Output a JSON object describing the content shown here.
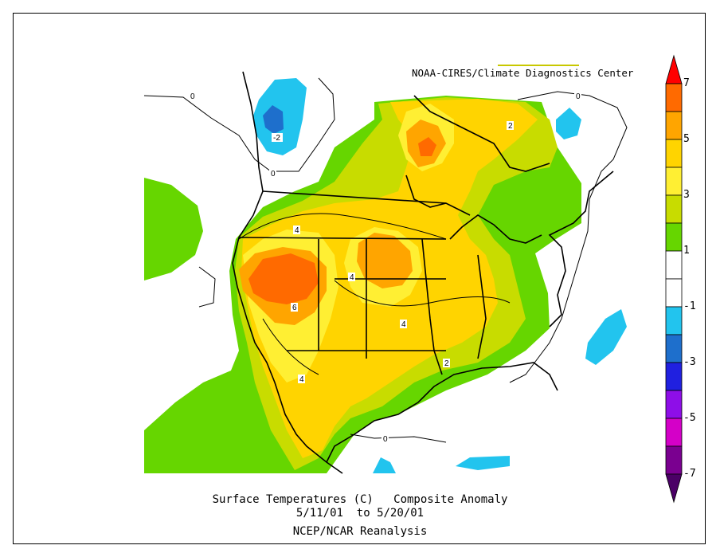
{
  "map": {
    "credit": "NOAA-CIRES/Climate Diagnostics Center",
    "title": "Surface Temperatures (C)   Composite Anomaly",
    "dates": "5/11/01  to 5/20/01",
    "source": "NCEP/NCAR Reanalysis",
    "contour_labels": [
      "-2",
      "0",
      "0",
      "0",
      "0",
      "2",
      "2",
      "4",
      "4",
      "4",
      "4",
      "6"
    ]
  },
  "colorbar": {
    "labels": [
      "7",
      "5",
      "3",
      "1",
      "-1",
      "-3",
      "-5",
      "-7"
    ],
    "colors": [
      "#ff0000",
      "#ff6a00",
      "#ffa500",
      "#ffd400",
      "#ffef33",
      "#c8dc00",
      "#66d600",
      "#ffffff",
      "#ffffff",
      "#22c4ee",
      "#1e6fcc",
      "#2020e0",
      "#8e0ee8",
      "#d400c8",
      "#7a0090",
      "#4b0066"
    ]
  },
  "palette": {
    "green": "#66d600",
    "lightgreen": "#c8dc00",
    "yellow": "#ffd400",
    "lightyellow": "#ffef33",
    "orange": "#ffa500",
    "darkorange": "#ff6a00",
    "cyan": "#22c4ee",
    "blue": "#1e6fcc"
  }
}
